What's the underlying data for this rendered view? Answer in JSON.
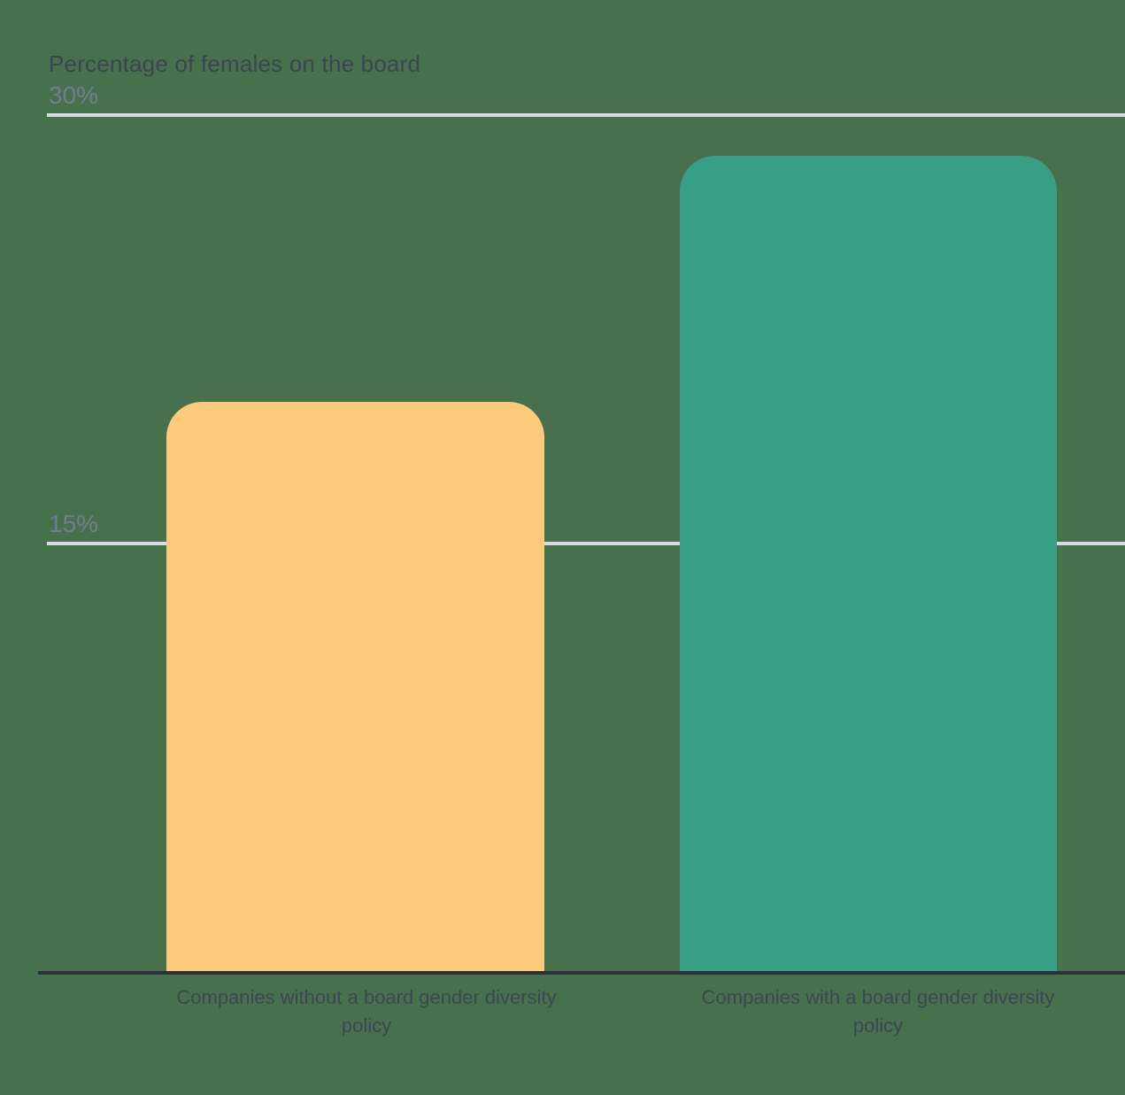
{
  "chart_data": {
    "type": "bar",
    "title": "Percentage of females on the board",
    "categories": [
      "Companies without a board gender diversity policy",
      "Companies with a board gender diversity policy"
    ],
    "categories_lines": [
      [
        "Companies without a board gender diversity",
        "policy"
      ],
      [
        "Companies with a board gender diversity",
        "policy"
      ]
    ],
    "values": [
      20,
      28.6
    ],
    "colors": [
      "#FDCA7B",
      "#389E85"
    ],
    "ytick_labels": [
      "30%",
      "15%"
    ],
    "yticks": [
      30,
      15
    ],
    "ylim": [
      0,
      30
    ],
    "xlabel": "",
    "ylabel": "Percentage of females on the board",
    "grid": "horizontal",
    "legend": "none",
    "background_color": "#47714C",
    "gridline_color": "#D8DDE3",
    "axis_line_color": "#28313C",
    "title_color": "#3A4550",
    "tick_label_color": "#727D8F"
  }
}
